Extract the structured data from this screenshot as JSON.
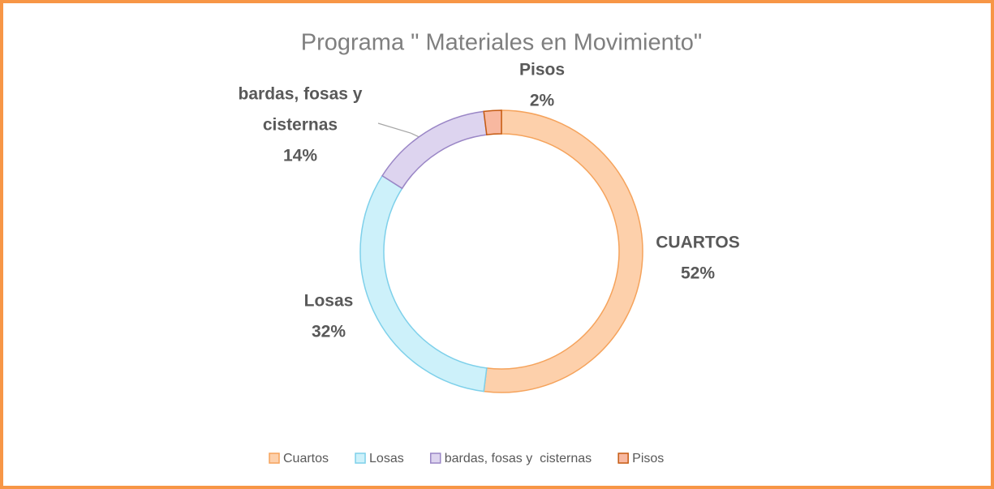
{
  "chart_data": {
    "type": "donut",
    "title": "Programa \" Materiales en Movimiento\"",
    "categories": [
      "Cuartos",
      "Losas",
      "bardas, fosas y  cisternas",
      "Pisos"
    ],
    "data_label_names": [
      [
        "CUARTOS"
      ],
      [
        "Losas"
      ],
      [
        "bardas, fosas y",
        "cisternas"
      ],
      [
        "Pisos"
      ]
    ],
    "values": [
      52,
      32,
      14,
      2
    ],
    "value_labels": [
      "52%",
      "32%",
      "14%",
      "2%"
    ],
    "colors": [
      "#fdd0ab",
      "#cdf1fa",
      "#ddd4ef",
      "#f8b8a0"
    ],
    "edge_colors": [
      "#f5a35c",
      "#7ed0ea",
      "#9a86c6",
      "#c55a11"
    ],
    "legend": "bottom"
  }
}
